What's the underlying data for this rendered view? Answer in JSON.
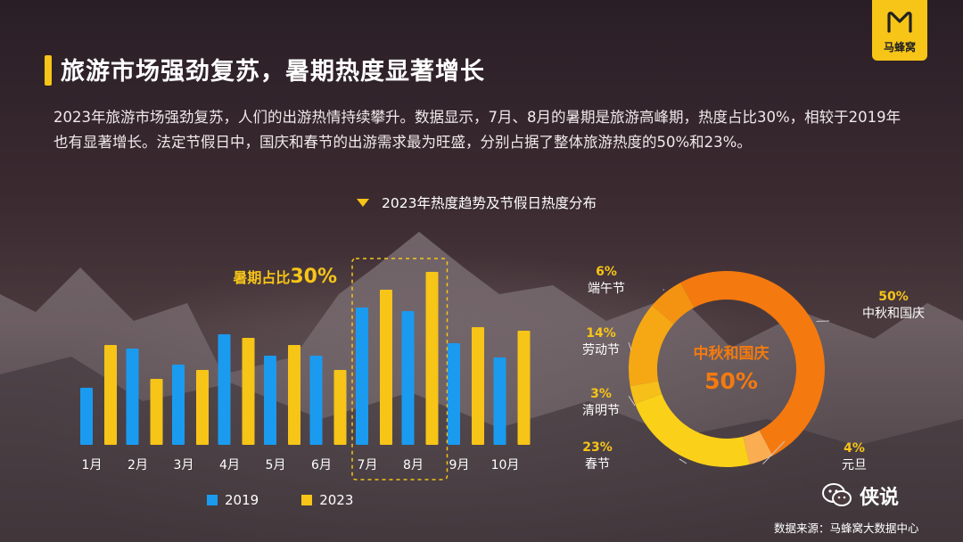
{
  "title": "旅游市场强劲复苏，暑期热度显著增长",
  "body": "2023年旅游市场强劲复苏，人们的出游热情持续攀升。数据显示，7月、8月的暑期是旅游高峰期，热度占比30%，相较于2019年也有显著增长。法定节假日中，国庆和春节的出游需求最为旺盛，分别占据了整体旅游热度的50%和23%。",
  "logo_text": "马蜂窝",
  "chart_heading": "2023年热度趋势及节假日热度分布",
  "colors": {
    "accent": "#f7c418",
    "blue": "#1a9bf0",
    "orange": "#f47a0f"
  },
  "chart_data": [
    {
      "type": "bar",
      "categories": [
        "1月",
        "2月",
        "3月",
        "4月",
        "5月",
        "6月",
        "7月",
        "8月",
        "9月",
        "10月"
      ],
      "series": [
        {
          "name": "2019",
          "values": [
            32,
            54,
            45,
            62,
            50,
            50,
            77,
            75,
            57,
            49
          ]
        },
        {
          "name": "2023",
          "values": [
            56,
            37,
            42,
            60,
            56,
            42,
            87,
            97,
            66,
            64
          ]
        }
      ],
      "ylim": [
        0,
        100
      ],
      "grid": false,
      "legend": "bottom",
      "annotation": {
        "label": "暑期占比",
        "value": "30%",
        "highlight": [
          "7月",
          "8月"
        ]
      }
    },
    {
      "type": "pie",
      "donut": true,
      "slices": [
        {
          "label": "中秋和国庆",
          "value": 50,
          "pct": "50%"
        },
        {
          "label": "元旦",
          "value": 4,
          "pct": "4%"
        },
        {
          "label": "春节",
          "value": 23,
          "pct": "23%"
        },
        {
          "label": "清明节",
          "value": 3,
          "pct": "3%"
        },
        {
          "label": "劳动节",
          "value": 14,
          "pct": "14%"
        },
        {
          "label": "端午节",
          "value": 6,
          "pct": "6%"
        }
      ],
      "center_label": "中秋和国庆",
      "center_value": "50%"
    }
  ],
  "wechat_label": "侠说",
  "source": "数据来源：马蜂窝大数据中心"
}
